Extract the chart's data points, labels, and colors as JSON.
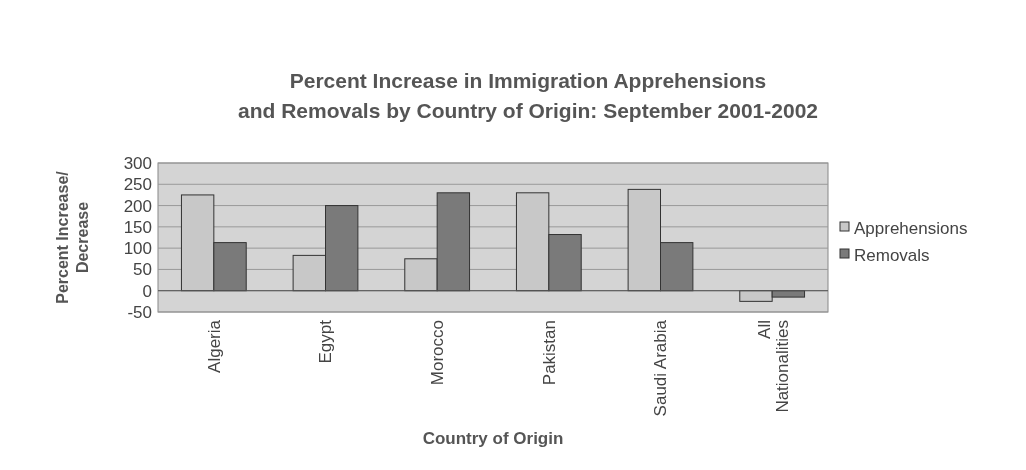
{
  "chart_data": {
    "type": "bar",
    "title": "Percent Increase in Immigration Apprehensions and Removals by Country of Origin: September 2001-2002",
    "xlabel": "Country of Origin",
    "ylabel": "Percent Increase/ Decrease",
    "categories": [
      "Algeria",
      "Egypt",
      "Morocco",
      "Pakistan",
      "Saudi Arabia",
      "All Nationalities"
    ],
    "series": [
      {
        "name": "Apprehensions",
        "color": "#c8c8c8",
        "values": [
          225,
          83,
          75,
          230,
          238,
          -25
        ]
      },
      {
        "name": "Removals",
        "color": "#7a7a7a",
        "values": [
          113,
          200,
          230,
          132,
          113,
          -15
        ]
      }
    ],
    "ylim": [
      -50,
      300
    ],
    "yticks": [
      -50,
      0,
      50,
      100,
      150,
      200,
      250,
      300
    ],
    "grid": "y",
    "legend": "right"
  }
}
